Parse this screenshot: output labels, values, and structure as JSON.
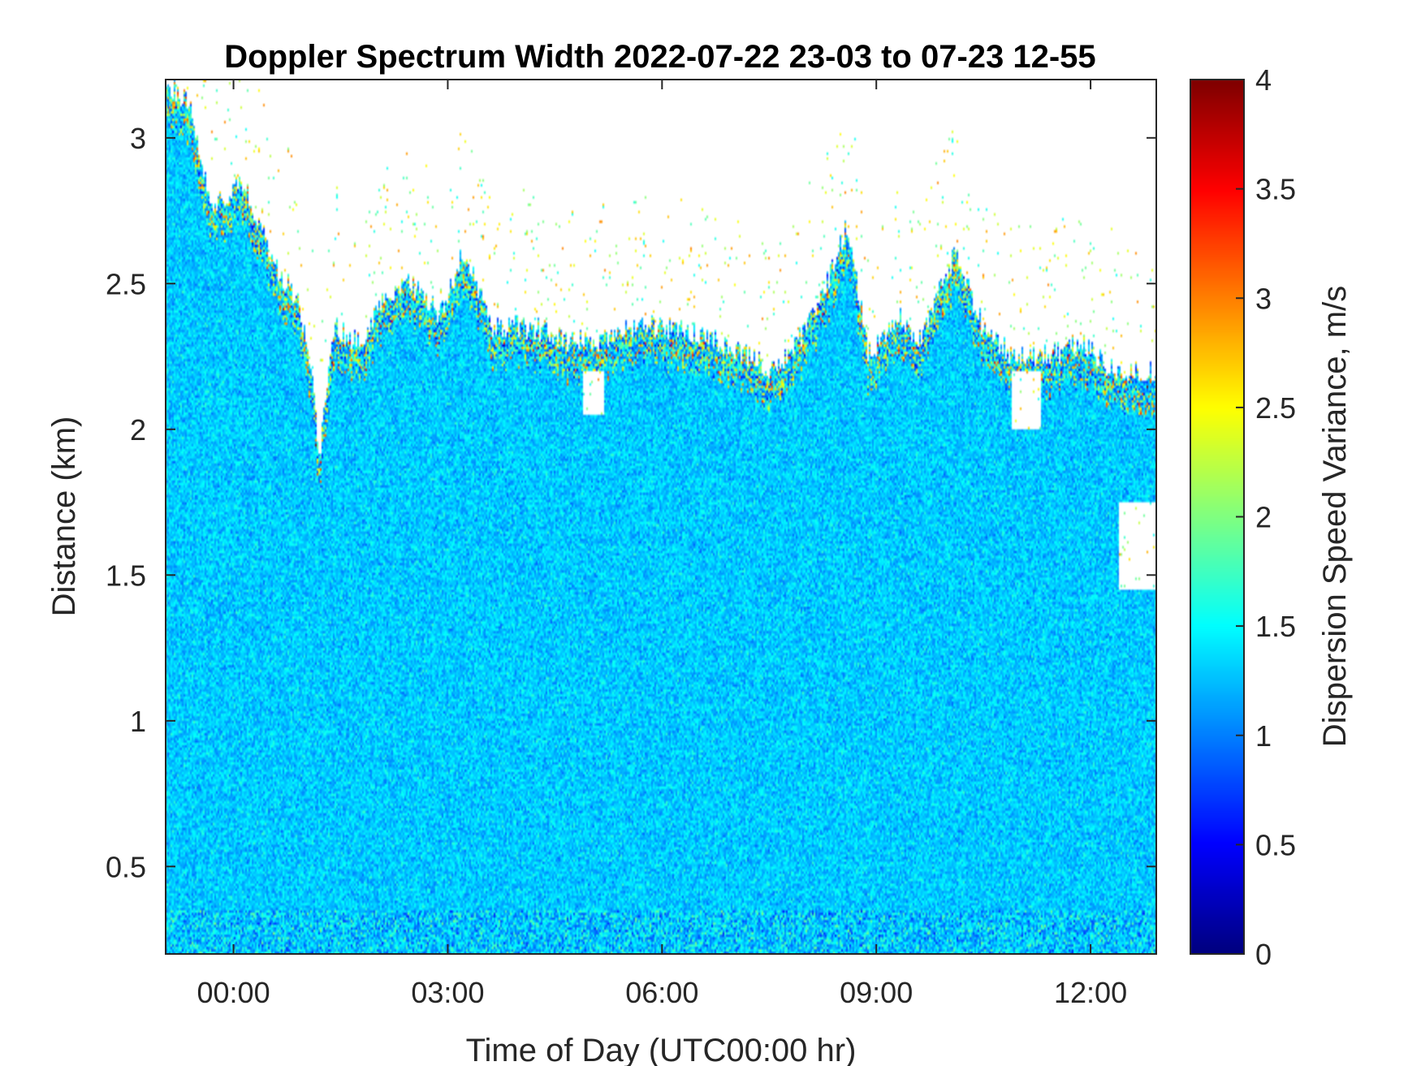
{
  "chart_data": {
    "type": "heatmap",
    "title": "Doppler Spectrum Width 2022-07-22 23-03 to 07-23 12-55",
    "xlabel": "Time of Day (UTC00:00 hr)",
    "ylabel": "Distance (km)",
    "colorbar_label": "Dispersion Speed Variance, m/s",
    "x_unit": "hours relative to 2022-07-23 00:00 UTC",
    "xlim": [
      -0.95,
      12.92
    ],
    "ylim": [
      0.2,
      3.2
    ],
    "clim": [
      0,
      4
    ],
    "colormap": "jet",
    "x_ticks": [
      {
        "value": 0,
        "label": "00:00"
      },
      {
        "value": 3,
        "label": "03:00"
      },
      {
        "value": 6,
        "label": "06:00"
      },
      {
        "value": 9,
        "label": "09:00"
      },
      {
        "value": 12,
        "label": "12:00"
      }
    ],
    "y_ticks": [
      {
        "value": 0.5,
        "label": "0.5"
      },
      {
        "value": 1,
        "label": "1"
      },
      {
        "value": 1.5,
        "label": "1.5"
      },
      {
        "value": 2,
        "label": "2"
      },
      {
        "value": 2.5,
        "label": "2.5"
      },
      {
        "value": 3,
        "label": "3"
      }
    ],
    "colorbar_ticks": [
      {
        "value": 0,
        "label": "0"
      },
      {
        "value": 0.5,
        "label": "0.5"
      },
      {
        "value": 1,
        "label": "1"
      },
      {
        "value": 1.5,
        "label": "1.5"
      },
      {
        "value": 2,
        "label": "2"
      },
      {
        "value": 2.5,
        "label": "2.5"
      },
      {
        "value": 3,
        "label": "3"
      },
      {
        "value": 3.5,
        "label": "3.5"
      },
      {
        "value": 4,
        "label": "4"
      }
    ],
    "typical_value": 1.3,
    "signal_top_km": [
      [
        -0.95,
        3.2
      ],
      [
        -0.6,
        3.1
      ],
      [
        -0.3,
        2.75
      ],
      [
        0.1,
        2.85
      ],
      [
        0.3,
        2.75
      ],
      [
        0.6,
        2.55
      ],
      [
        0.9,
        2.45
      ],
      [
        1.1,
        2.2
      ],
      [
        1.2,
        1.9
      ],
      [
        1.4,
        2.35
      ],
      [
        1.8,
        2.3
      ],
      [
        2.1,
        2.45
      ],
      [
        2.5,
        2.5
      ],
      [
        2.9,
        2.4
      ],
      [
        3.2,
        2.6
      ],
      [
        3.4,
        2.5
      ],
      [
        3.6,
        2.35
      ],
      [
        4.2,
        2.35
      ],
      [
        4.7,
        2.3
      ],
      [
        5.1,
        2.3
      ],
      [
        5.6,
        2.35
      ],
      [
        6.3,
        2.35
      ],
      [
        6.8,
        2.3
      ],
      [
        7.2,
        2.25
      ],
      [
        7.6,
        2.2
      ],
      [
        7.9,
        2.3
      ],
      [
        8.3,
        2.5
      ],
      [
        8.6,
        2.7
      ],
      [
        8.9,
        2.25
      ],
      [
        9.3,
        2.4
      ],
      [
        9.6,
        2.3
      ],
      [
        10.1,
        2.6
      ],
      [
        10.5,
        2.35
      ],
      [
        10.9,
        2.25
      ],
      [
        11.4,
        2.25
      ],
      [
        11.9,
        2.3
      ],
      [
        12.3,
        2.2
      ],
      [
        12.92,
        2.2
      ]
    ],
    "gaps": [
      {
        "x": [
          4.9,
          5.2
        ],
        "y": [
          2.05,
          2.2
        ]
      },
      {
        "x": [
          10.9,
          11.3
        ],
        "y": [
          2.0,
          2.2
        ]
      },
      {
        "x": [
          12.4,
          12.92
        ],
        "y": [
          1.45,
          1.75
        ]
      }
    ]
  }
}
